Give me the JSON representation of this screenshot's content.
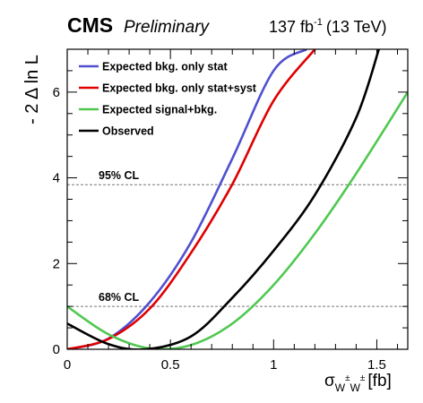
{
  "header": {
    "experiment": "CMS",
    "status": "Preliminary",
    "luminosity": "137 fb",
    "luminosity_sup": "-1",
    "energy": "(13 TeV)"
  },
  "chart_data": {
    "type": "line",
    "xlabel_main": "σ",
    "xlabel_sub": "W",
    "xlabel_sup": "±",
    "xlabel_unit": "[fb]",
    "ylabel": "- 2 Δ ln L",
    "xlim": [
      0,
      1.65
    ],
    "ylim": [
      0,
      7
    ],
    "xticks": [
      "0",
      "0.5",
      "1",
      "1.5"
    ],
    "xtick_values": [
      0,
      0.5,
      1,
      1.5
    ],
    "yticks": [
      "0",
      "2",
      "4",
      "6"
    ],
    "ytick_values": [
      0,
      2,
      4,
      6
    ],
    "grid": false,
    "legend_position": "top-left",
    "reference_lines": [
      {
        "label": "95% CL",
        "y": 3.84
      },
      {
        "label": "68% CL",
        "y": 1.0
      }
    ],
    "series": [
      {
        "name": "Expected bkg. only stat",
        "color": "#5050d0",
        "x": [
          0,
          0.2,
          0.4,
          0.6,
          0.8,
          1.0,
          1.16
        ],
        "y": [
          0,
          0.25,
          1.1,
          2.5,
          4.45,
          6.5,
          7.0
        ]
      },
      {
        "name": "Expected bkg. only stat+syst",
        "color": "#e00000",
        "x": [
          0,
          0.2,
          0.4,
          0.6,
          0.8,
          1.0,
          1.2
        ],
        "y": [
          0,
          0.24,
          0.95,
          2.25,
          3.85,
          5.8,
          7.0
        ]
      },
      {
        "name": "Expected signal+bkg.",
        "color": "#50c850",
        "x": [
          0,
          0.2,
          0.4,
          0.6,
          0.8,
          1.0,
          1.2,
          1.4,
          1.65
        ],
        "y": [
          1.0,
          0.35,
          0.02,
          0.1,
          0.6,
          1.5,
          2.7,
          4.1,
          6.0
        ]
      },
      {
        "name": "Observed",
        "color": "#000000",
        "x": [
          0,
          0.2,
          0.38,
          0.6,
          0.8,
          1.0,
          1.2,
          1.4,
          1.51
        ],
        "y": [
          0.6,
          0.12,
          0.0,
          0.3,
          1.2,
          2.3,
          3.6,
          5.4,
          7.0
        ]
      }
    ]
  }
}
